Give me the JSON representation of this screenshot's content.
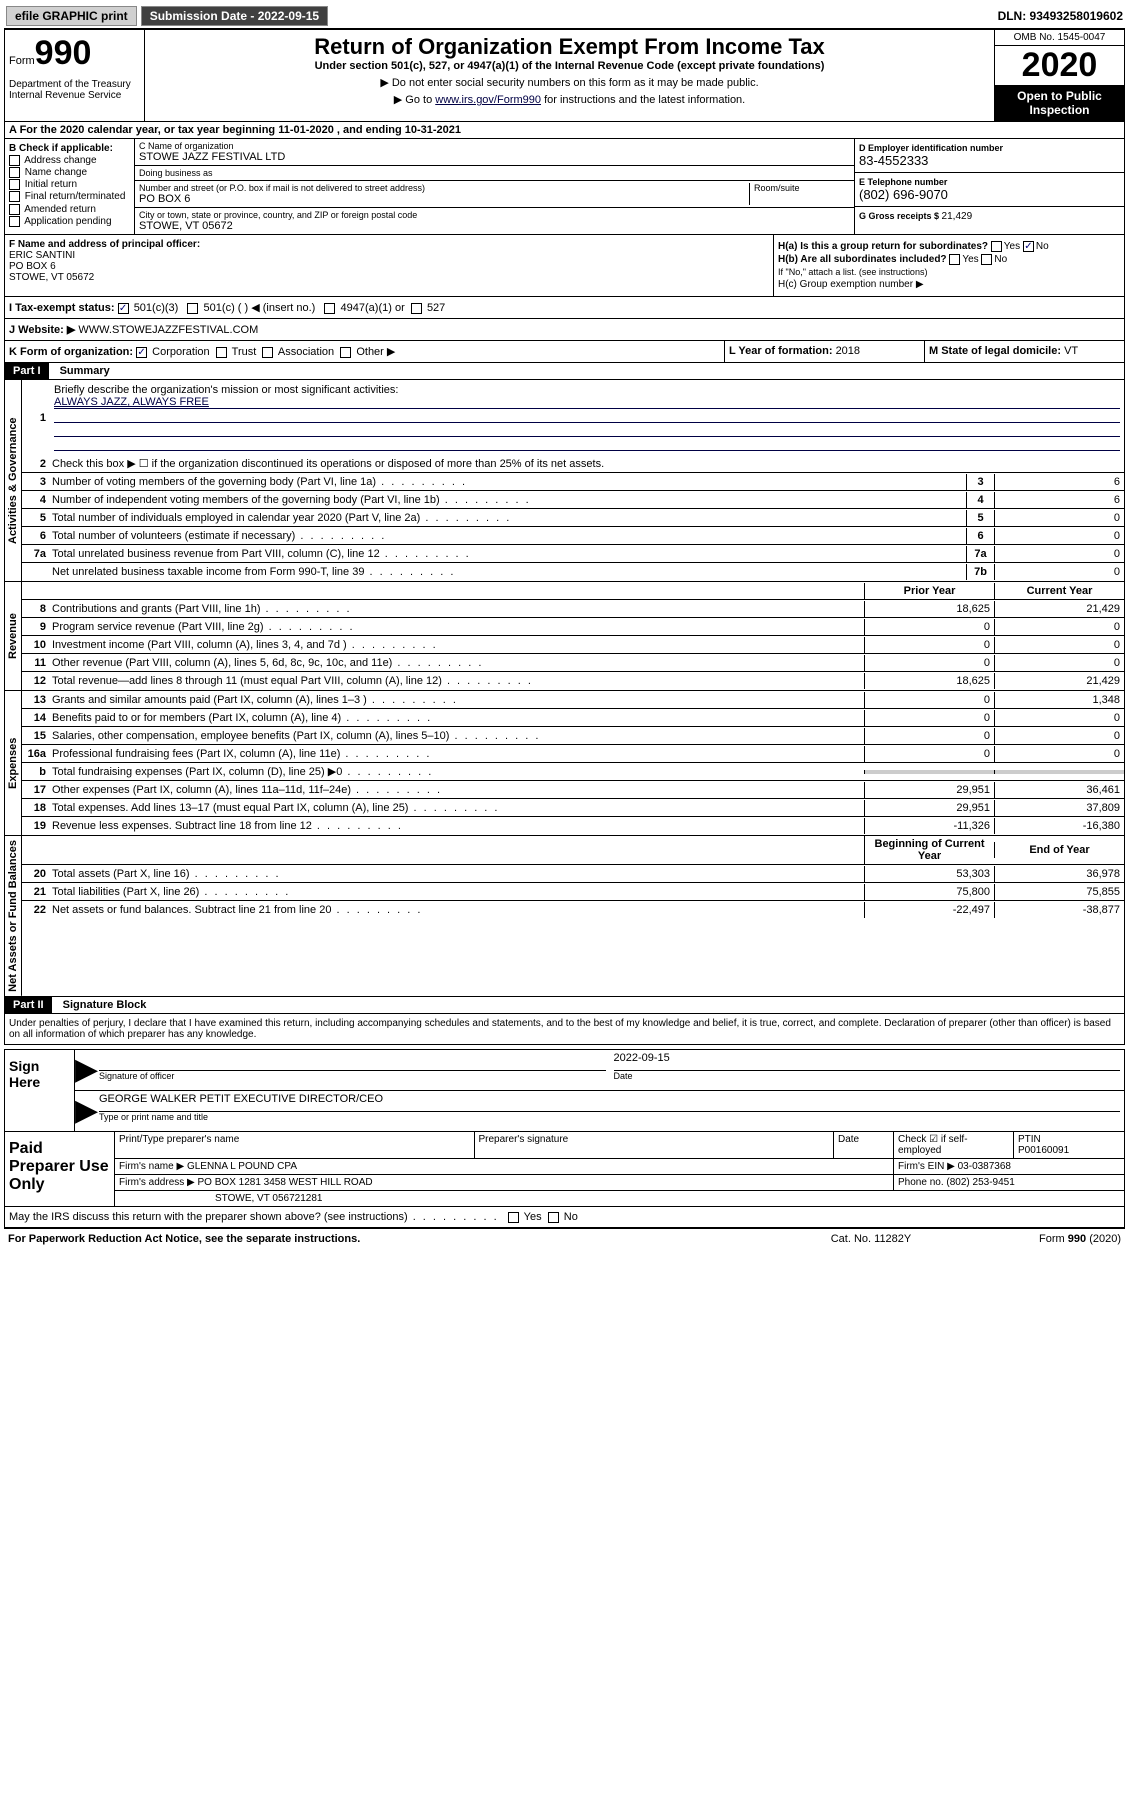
{
  "toolbar": {
    "efile": "efile GRAPHIC print",
    "submission_label": "Submission Date - 2022-09-15",
    "dln": "DLN: 93493258019602"
  },
  "header": {
    "form_label": "Form",
    "form_number": "990",
    "dept": "Department of the Treasury\nInternal Revenue Service",
    "title": "Return of Organization Exempt From Income Tax",
    "subtitle": "Under section 501(c), 527, or 4947(a)(1) of the Internal Revenue Code (except private foundations)",
    "arrow1": "▶ Do not enter social security numbers on this form as it may be made public.",
    "arrow2_pre": "▶ Go to ",
    "arrow2_link": "www.irs.gov/Form990",
    "arrow2_post": " for instructions and the latest information.",
    "omb": "OMB No. 1545-0047",
    "year": "2020",
    "open": "Open to Public Inspection"
  },
  "row_a": "A For the 2020 calendar year, or tax year beginning 11-01-2020   , and ending 10-31-2021",
  "entity": {
    "b_label": "B Check if applicable:",
    "b_options": [
      "Address change",
      "Name change",
      "Initial return",
      "Final return/terminated",
      "Amended return",
      "Application pending"
    ],
    "c_label": "C Name of organization",
    "c_name": "STOWE JAZZ FESTIVAL LTD",
    "dba_label": "Doing business as",
    "dba": "",
    "addr_label": "Number and street (or P.O. box if mail is not delivered to street address)",
    "addr": "PO BOX 6",
    "room_label": "Room/suite",
    "city_label": "City or town, state or province, country, and ZIP or foreign postal code",
    "city": "STOWE, VT  05672",
    "d_label": "D Employer identification number",
    "d_val": "83-4552333",
    "e_label": "E Telephone number",
    "e_val": "(802) 696-9070",
    "g_label": "G Gross receipts $ ",
    "g_val": "21,429"
  },
  "fh": {
    "f_label": "F  Name and address of principal officer:",
    "f_name": "ERIC SANTINI",
    "f_addr1": "PO BOX 6",
    "f_addr2": "STOWE, VT  05672",
    "ha": "H(a)  Is this a group return for subordinates?",
    "ha_no": "No",
    "hb": "H(b)  Are all subordinates included?",
    "hb_note": "If \"No,\" attach a list. (see instructions)",
    "hc": "H(c)  Group exemption number ▶"
  },
  "status": {
    "i_label": "I   Tax-exempt status:",
    "i_501c3": "501(c)(3)",
    "i_501c": "501(c) (  ) ◀ (insert no.)",
    "i_4947": "4947(a)(1) or",
    "i_527": "527"
  },
  "website": {
    "j_label": "J   Website: ▶",
    "j_val": "  WWW.STOWEJAZZFESTIVAL.COM"
  },
  "korg": {
    "k_label": "K Form of organization:",
    "k_corp": "Corporation",
    "k_trust": "Trust",
    "k_assoc": "Association",
    "k_other": "Other ▶",
    "l_label": "L Year of formation: ",
    "l_val": "2018",
    "m_label": "M State of legal domicile: ",
    "m_val": "VT"
  },
  "part1": {
    "header": "Part I",
    "title": "Summary"
  },
  "sections": {
    "gov": "Activities & Governance",
    "rev": "Revenue",
    "exp": "Expenses",
    "net": "Net Assets or Fund Balances"
  },
  "gov_rows": {
    "1_label": "Briefly describe the organization's mission or most significant activities:",
    "1_val": "ALWAYS JAZZ, ALWAYS FREE",
    "2_label": "Check this box ▶ ☐  if the organization discontinued its operations or disposed of more than 25% of its net assets.",
    "3_label": "Number of voting members of the governing body (Part VI, line 1a)",
    "3_box": "3",
    "3_val": "6",
    "4_label": "Number of independent voting members of the governing body (Part VI, line 1b)",
    "4_box": "4",
    "4_val": "6",
    "5_label": "Total number of individuals employed in calendar year 2020 (Part V, line 2a)",
    "5_box": "5",
    "5_val": "0",
    "6_label": "Total number of volunteers (estimate if necessary)",
    "6_box": "6",
    "6_val": "0",
    "7a_label": "Total unrelated business revenue from Part VIII, column (C), line 12",
    "7a_box": "7a",
    "7a_val": "0",
    "7b_label": "Net unrelated business taxable income from Form 990-T, line 39",
    "7b_box": "7b",
    "7b_val": "0"
  },
  "col_hdr": {
    "prior": "Prior Year",
    "current": "Current Year"
  },
  "rev_rows": [
    {
      "n": "8",
      "d": "Contributions and grants (Part VIII, line 1h)",
      "p": "18,625",
      "c": "21,429"
    },
    {
      "n": "9",
      "d": "Program service revenue (Part VIII, line 2g)",
      "p": "0",
      "c": "0"
    },
    {
      "n": "10",
      "d": "Investment income (Part VIII, column (A), lines 3, 4, and 7d )",
      "p": "0",
      "c": "0"
    },
    {
      "n": "11",
      "d": "Other revenue (Part VIII, column (A), lines 5, 6d, 8c, 9c, 10c, and 11e)",
      "p": "0",
      "c": "0"
    },
    {
      "n": "12",
      "d": "Total revenue—add lines 8 through 11 (must equal Part VIII, column (A), line 12)",
      "p": "18,625",
      "c": "21,429"
    }
  ],
  "exp_rows": [
    {
      "n": "13",
      "d": "Grants and similar amounts paid (Part IX, column (A), lines 1–3 )",
      "p": "0",
      "c": "1,348"
    },
    {
      "n": "14",
      "d": "Benefits paid to or for members (Part IX, column (A), line 4)",
      "p": "0",
      "c": "0"
    },
    {
      "n": "15",
      "d": "Salaries, other compensation, employee benefits (Part IX, column (A), lines 5–10)",
      "p": "0",
      "c": "0"
    },
    {
      "n": "16a",
      "d": "Professional fundraising fees (Part IX, column (A), line 11e)",
      "p": "0",
      "c": "0"
    },
    {
      "n": "b",
      "d": "Total fundraising expenses (Part IX, column (D), line 25) ▶0",
      "p": "",
      "c": "",
      "shade": true
    },
    {
      "n": "17",
      "d": "Other expenses (Part IX, column (A), lines 11a–11d, 11f–24e)",
      "p": "29,951",
      "c": "36,461"
    },
    {
      "n": "18",
      "d": "Total expenses. Add lines 13–17 (must equal Part IX, column (A), line 25)",
      "p": "29,951",
      "c": "37,809"
    },
    {
      "n": "19",
      "d": "Revenue less expenses. Subtract line 18 from line 12",
      "p": "-11,326",
      "c": "-16,380"
    }
  ],
  "net_hdr": {
    "prior": "Beginning of Current Year",
    "current": "End of Year"
  },
  "net_rows": [
    {
      "n": "20",
      "d": "Total assets (Part X, line 16)",
      "p": "53,303",
      "c": "36,978"
    },
    {
      "n": "21",
      "d": "Total liabilities (Part X, line 26)",
      "p": "75,800",
      "c": "75,855"
    },
    {
      "n": "22",
      "d": "Net assets or fund balances. Subtract line 21 from line 20",
      "p": "-22,497",
      "c": "-38,877"
    }
  ],
  "part2": {
    "header": "Part II",
    "title": "Signature Block"
  },
  "sig_decl": "Under penalties of perjury, I declare that I have examined this return, including accompanying schedules and statements, and to the best of my knowledge and belief, it is true, correct, and complete. Declaration of preparer (other than officer) is based on all information of which preparer has any knowledge.",
  "sign": {
    "label": "Sign Here",
    "sig_of_officer": "Signature of officer",
    "date_label": "Date",
    "date_val": "2022-09-15",
    "name": "GEORGE WALKER PETIT  EXECUTIVE DIRECTOR/CEO",
    "name_label": "Type or print name and title"
  },
  "prep": {
    "label": "Paid Preparer Use Only",
    "print_label": "Print/Type preparer's name",
    "print_val": "",
    "sig_label": "Preparer's signature",
    "date_label": "Date",
    "check_label": "Check ☑ if self-employed",
    "ptin_label": "PTIN",
    "ptin_val": "P00160091",
    "firm_name_label": "Firm's name    ▶",
    "firm_name": "GLENNA L POUND CPA",
    "firm_ein_label": "Firm's EIN ▶",
    "firm_ein": "03-0387368",
    "firm_addr_label": "Firm's address ▶",
    "firm_addr1": "PO BOX 1281 3458 WEST HILL ROAD",
    "firm_addr2": "STOWE, VT  056721281",
    "phone_label": "Phone no.",
    "phone": "(802) 253-9451"
  },
  "discuss": "May the IRS discuss this return with the preparer shown above? (see instructions)",
  "footer": {
    "paperwork": "For Paperwork Reduction Act Notice, see the separate instructions.",
    "catno": "Cat. No. 11282Y",
    "formref": "Form 990 (2020)"
  },
  "colors": {
    "link": "#004488",
    "black": "#000000",
    "shade": "#cccccc"
  }
}
